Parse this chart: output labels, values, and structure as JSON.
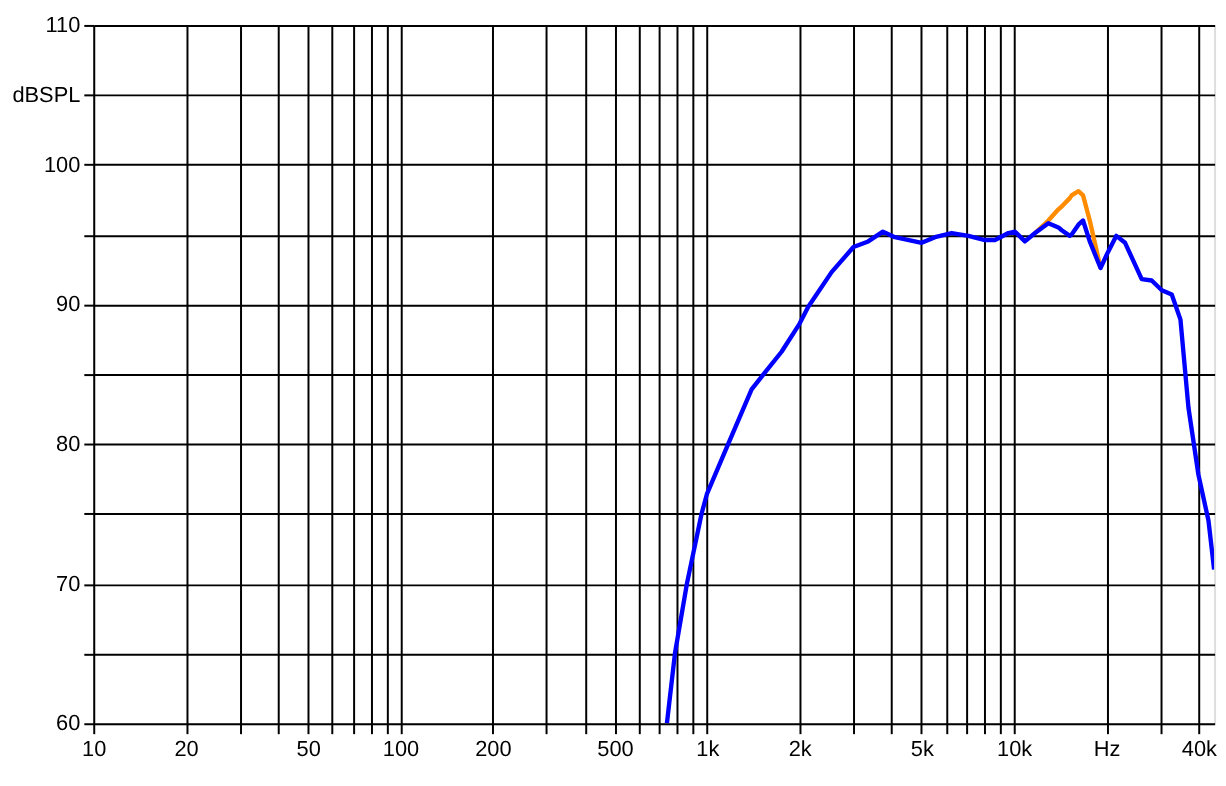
{
  "chart_data": {
    "type": "line",
    "xlim": [
      10,
      45000
    ],
    "ylim": [
      60,
      110
    ],
    "log": "x",
    "grid": true,
    "line_style": "solid",
    "marker": "none",
    "x": [
      741,
      787,
      861,
      961,
      1000,
      1174,
      1399,
      1545,
      1752,
      2004,
      2138,
      2550,
      3006,
      3356,
      3748,
      4100,
      5013,
      5540,
      6280,
      7115,
      8065,
      8690,
      9615,
      10090,
      10880,
      11740,
      12970,
      13990,
      14340,
      15240,
      15450,
      16260,
      16830,
      17700,
      19190,
      20150,
      21610,
      23070,
      26140,
      28180,
      30390,
      32750,
      34960,
      37120,
      40000,
      43150,
      45000
    ],
    "series": [
      {
        "color": "#ff8c00",
        "values": [
          null,
          null,
          null,
          null,
          null,
          null,
          null,
          null,
          null,
          null,
          null,
          null,
          null,
          null,
          null,
          null,
          null,
          null,
          null,
          null,
          null,
          null,
          null,
          null,
          null,
          95.1,
          96.0,
          96.8,
          97.0,
          97.6,
          97.8,
          98.1,
          97.8,
          96.0,
          92.6,
          null,
          null,
          null,
          null,
          null,
          null,
          null,
          null,
          null,
          null,
          null,
          null
        ]
      },
      {
        "color": "#0000ff",
        "values": [
          60,
          65,
          70,
          75,
          76.4,
          80,
          83.9,
          85.1,
          86.6,
          88.6,
          89.8,
          92.3,
          94.1,
          94.5,
          95.2,
          94.8,
          94.4,
          94.8,
          95.1,
          94.9,
          94.6,
          94.6,
          95.1,
          95.2,
          94.5,
          95.1,
          95.8,
          95.5,
          95.3,
          94.9,
          95.0,
          95.7,
          96.0,
          94.5,
          92.6,
          93.6,
          94.9,
          94.4,
          91.8,
          91.7,
          91.0,
          90.7,
          88.9,
          82.6,
          77.8,
          74.5,
          71
        ]
      }
    ],
    "xticks": [
      10,
      20,
      {
        "value": 30,
        "label": null
      },
      {
        "value": 40,
        "label": null
      },
      50,
      {
        "value": 60,
        "label": null
      },
      {
        "value": 70,
        "label": null
      },
      {
        "value": 80,
        "label": null
      },
      {
        "value": 90,
        "label": null
      },
      100,
      200,
      {
        "value": 300,
        "label": null
      },
      {
        "value": 400,
        "label": null
      },
      500,
      {
        "value": 600,
        "label": null
      },
      {
        "value": 700,
        "label": null
      },
      {
        "value": 800,
        "label": null
      },
      {
        "value": 900,
        "label": null
      },
      {
        "value": 1000,
        "label": "1k"
      },
      {
        "value": 2000,
        "label": "2k"
      },
      {
        "value": 3000,
        "label": null
      },
      {
        "value": 4000,
        "label": null
      },
      {
        "value": 5000,
        "label": "5k"
      },
      {
        "value": 6000,
        "label": null
      },
      {
        "value": 7000,
        "label": null
      },
      {
        "value": 8000,
        "label": null
      },
      {
        "value": 9000,
        "label": null
      },
      {
        "value": 10000,
        "label": "10k"
      },
      {
        "value": 20000,
        "label": "Hz"
      },
      {
        "value": 30000,
        "label": null
      },
      {
        "value": 40000,
        "label": "40k"
      }
    ],
    "yticks": [
      60,
      {
        "value": 65,
        "label": null
      },
      70,
      {
        "value": 75,
        "label": null
      },
      80,
      {
        "value": 85,
        "label": null
      },
      90,
      {
        "value": 95,
        "label": null
      },
      100,
      {
        "value": 105,
        "label": "dBSPL"
      },
      110
    ]
  }
}
